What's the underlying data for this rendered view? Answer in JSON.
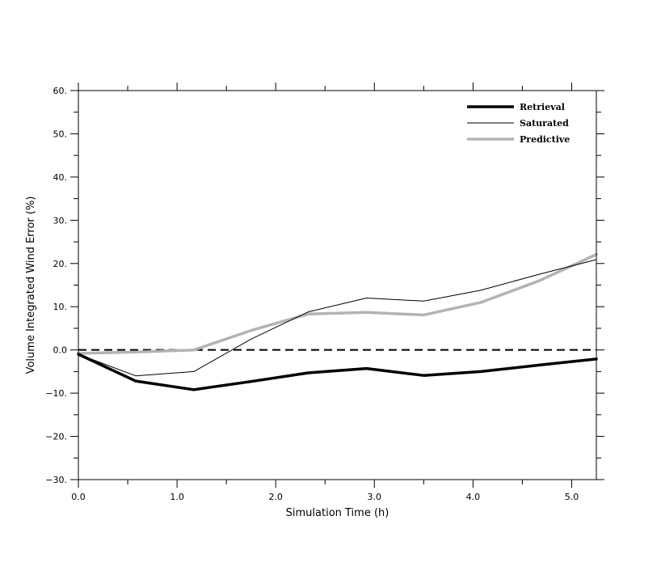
{
  "chart_data": {
    "type": "line",
    "xlabel": "Simulation Time (h)",
    "ylabel": "Volume Integrated Wind Error (%)",
    "xlim": [
      0.0,
      5.25
    ],
    "ylim": [
      -30,
      60
    ],
    "x_ticks": [
      0.0,
      1.0,
      2.0,
      3.0,
      4.0,
      5.0
    ],
    "x_tick_labels": [
      "0.0",
      "1.0",
      "2.0",
      "3.0",
      "4.0",
      "5.0"
    ],
    "y_ticks": [
      -30,
      -20,
      -10,
      0,
      10,
      20,
      30,
      40,
      50,
      60
    ],
    "y_tick_labels": [
      "−30.",
      "−20.",
      "−10.",
      "0.0",
      "10.",
      "20.",
      "30.",
      "40.",
      "50.",
      "60."
    ],
    "legend_position": "top-right",
    "zero_line": {
      "y": 0,
      "style": "dashed",
      "color": "#000000"
    },
    "series": [
      {
        "name": "Retrieval",
        "color": "#000000",
        "width": "thick",
        "x": [
          0.0,
          0.58,
          1.17,
          1.75,
          2.33,
          2.92,
          3.5,
          4.08,
          4.67,
          5.25
        ],
        "y": [
          -1.0,
          -7.2,
          -9.2,
          -7.3,
          -5.3,
          -4.3,
          -5.9,
          -5.0,
          -3.5,
          -2.1
        ]
      },
      {
        "name": "Saturated",
        "color": "#000000",
        "width": "thin",
        "x": [
          0.0,
          0.58,
          1.17,
          1.75,
          2.33,
          2.92,
          3.5,
          4.08,
          4.67,
          5.25
        ],
        "y": [
          -1.0,
          -6.0,
          -5.0,
          2.5,
          8.8,
          12.0,
          11.3,
          13.8,
          17.5,
          20.9
        ]
      },
      {
        "name": "Predictive",
        "color": "#b3b3b3",
        "width": "thick",
        "x": [
          0.0,
          0.58,
          1.17,
          1.75,
          2.33,
          2.92,
          3.5,
          4.08,
          4.67,
          5.25
        ],
        "y": [
          -0.8,
          -0.5,
          0.0,
          4.5,
          8.3,
          8.7,
          8.1,
          11.0,
          16.0,
          22.1
        ]
      }
    ]
  }
}
